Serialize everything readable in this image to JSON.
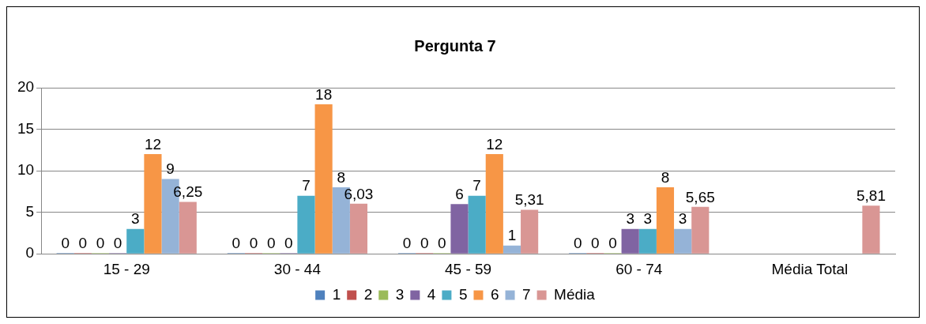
{
  "chart_data": {
    "type": "bar",
    "title": "Pergunta 7",
    "categories": [
      "15 - 29",
      "30 - 44",
      "45 - 59",
      "60 - 74",
      "Média Total"
    ],
    "series": [
      {
        "name": "1",
        "color": "#4f81bd",
        "values": [
          0,
          0,
          0,
          0,
          null
        ],
        "value_labels": [
          "0",
          "0",
          "0",
          "0",
          null
        ]
      },
      {
        "name": "2",
        "color": "#c0504d",
        "values": [
          0,
          0,
          0,
          0,
          null
        ],
        "value_labels": [
          "0",
          "0",
          "0",
          "0",
          null
        ]
      },
      {
        "name": "3",
        "color": "#9bbb59",
        "values": [
          0,
          0,
          0,
          0,
          null
        ],
        "value_labels": [
          "0",
          "0",
          "0",
          "0",
          null
        ]
      },
      {
        "name": "4",
        "color": "#8064a2",
        "values": [
          0,
          0,
          6,
          3,
          null
        ],
        "value_labels": [
          "0",
          "0",
          "6",
          "3",
          null
        ]
      },
      {
        "name": "5",
        "color": "#4bacc6",
        "values": [
          3,
          7,
          7,
          3,
          null
        ],
        "value_labels": [
          "3",
          "7",
          "7",
          "3",
          null
        ]
      },
      {
        "name": "6",
        "color": "#f79646",
        "values": [
          12,
          18,
          12,
          8,
          null
        ],
        "value_labels": [
          "12",
          "18",
          "12",
          "8",
          null
        ]
      },
      {
        "name": "7",
        "color": "#95b3d7",
        "values": [
          9,
          8,
          1,
          3,
          null
        ],
        "value_labels": [
          "9",
          "8",
          "1",
          "3",
          null
        ]
      },
      {
        "name": "Média",
        "color": "#d99694",
        "values": [
          6.25,
          6.03,
          5.31,
          5.65,
          5.81
        ],
        "value_labels": [
          "6,25",
          "6,03",
          "5,31",
          "5,65",
          "5,81"
        ]
      }
    ],
    "ylim": [
      0,
      20
    ],
    "yticks": [
      0,
      5,
      10,
      15,
      20
    ],
    "grid": "y",
    "legend": "bottom"
  }
}
